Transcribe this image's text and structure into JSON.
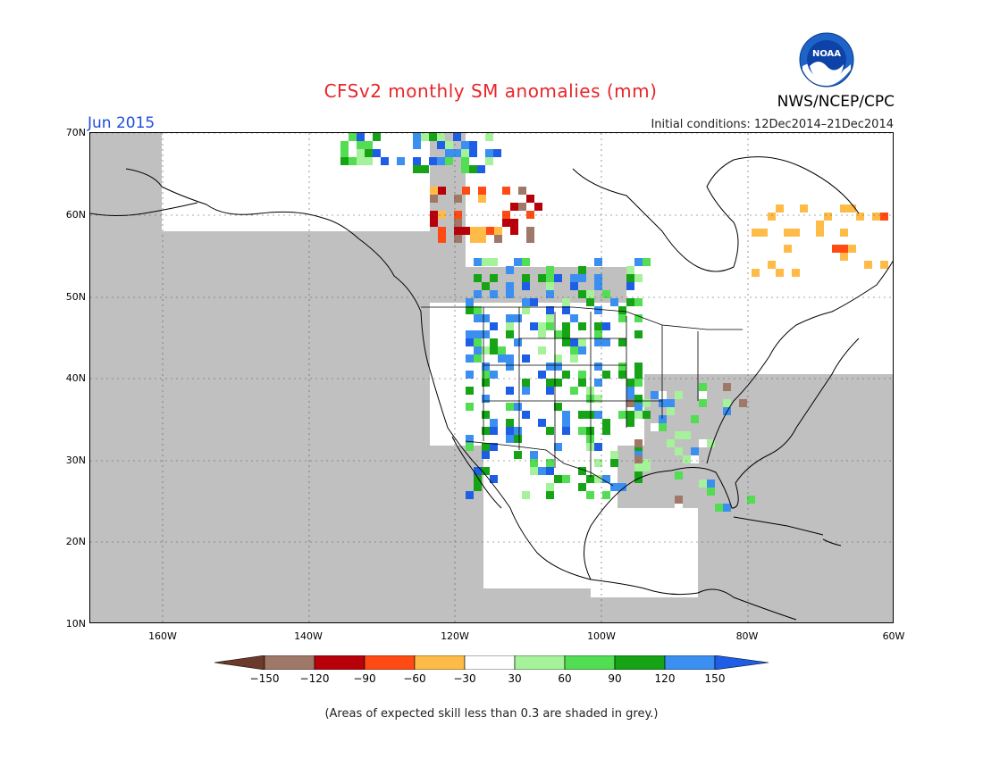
{
  "title": "CFSv2 monthly SM anomalies (mm)",
  "month": "Jun 2015",
  "initial_conditions": "Initial conditions: 12Dec2014–21Dec2014",
  "org_label": "NWS/NCEP/CPC",
  "logo_text": "NOAA",
  "footnote": "(Areas of expected skill less than 0.3 are shaded in grey.)",
  "latitude_labels": [
    "70N",
    "60N",
    "50N",
    "40N",
    "30N",
    "20N",
    "10N"
  ],
  "longitude_labels": [
    "160W",
    "140W",
    "120W",
    "100W",
    "80W",
    "60W"
  ],
  "colorbar": {
    "ticks": [
      "−150",
      "−120",
      "−90",
      "−60",
      "−30",
      "30",
      "60",
      "90",
      "120",
      "150"
    ],
    "colors": [
      "#6b3a2a",
      "#a07868",
      "#b8000a",
      "#ff4a14",
      "#ffbb48",
      "#ffffff",
      "#a6f29a",
      "#52dd52",
      "#16a316",
      "#3a8ff0",
      "#1e5ee6"
    ]
  },
  "colors": {
    "land_grey": "#c0c0c0",
    "title_red": "#e8262a",
    "month_blue": "#1f4ddb"
  }
}
